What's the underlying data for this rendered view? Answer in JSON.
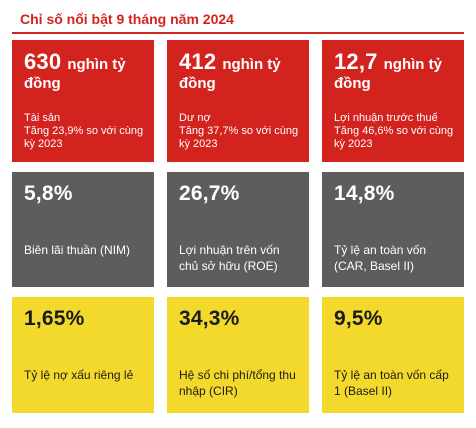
{
  "header": {
    "title": "Chỉ số nổi bật 9 tháng năm 2024"
  },
  "cards_row1": [
    {
      "value": "630",
      "unit_a": "nghìn tỷ",
      "unit_b": "đồng",
      "label": "Tài sản",
      "change": "Tăng 23,9% so với cùng kỳ 2023"
    },
    {
      "value": "412",
      "unit_a": "nghìn tỷ",
      "unit_b": "đồng",
      "label": "Dư nợ",
      "change": "Tăng 37,7% so với cùng kỳ 2023"
    },
    {
      "value": "12,7",
      "unit_a": "nghìn tỷ",
      "unit_b": "đồng",
      "label": "Lợi nhuận trước thuế",
      "change": "Tăng 46,6% so với cùng kỳ 2023"
    }
  ],
  "cards_row2": [
    {
      "value": "5,8%",
      "label": "Biên lãi thuần (NIM)"
    },
    {
      "value": "26,7%",
      "label": "Lợi nhuận trên vốn chủ sở hữu (ROE)"
    },
    {
      "value": "14,8%",
      "label": "Tỷ lệ an toàn vốn (CAR, Basel II)"
    }
  ],
  "cards_row3": [
    {
      "value": "1,65%",
      "label": "Tỷ lệ nợ xấu riêng lẻ"
    },
    {
      "value": "34,3%",
      "label": "Hệ số chi phí/tổng thu nhập (CIR)"
    },
    {
      "value": "9,5%",
      "label": "Tỷ lệ an toàn vốn cấp 1 (Basel II)"
    }
  ],
  "colors": {
    "red": "#d3231f",
    "gray": "#5d5d5d",
    "yellow": "#f3d92c"
  }
}
